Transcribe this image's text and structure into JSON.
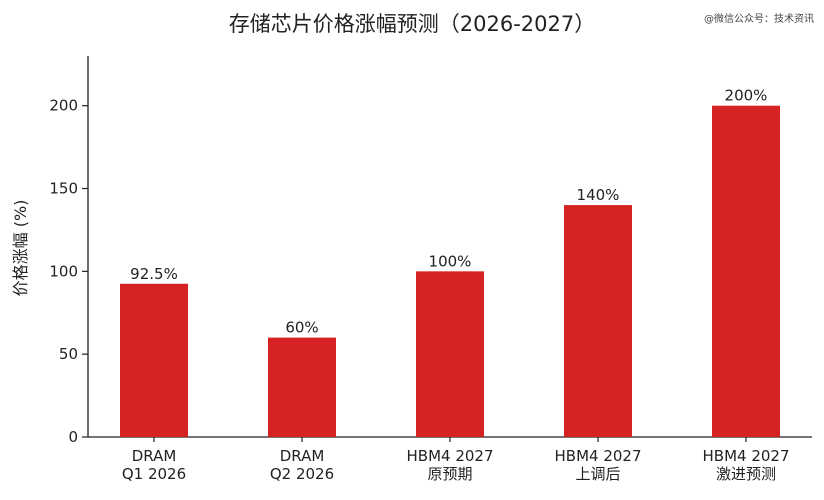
{
  "chart_data": {
    "type": "bar",
    "title": "存储芯片价格涨幅预测（2026-2027）",
    "ylabel": "价格涨幅 (%)",
    "xlabel": "",
    "ylim": [
      0,
      230
    ],
    "yticks": [
      0,
      50,
      100,
      150,
      200
    ],
    "categories": [
      [
        "DRAM",
        "Q1 2026"
      ],
      [
        "DRAM",
        "Q2 2026"
      ],
      [
        "HBM4 2027",
        "原预期"
      ],
      [
        "HBM4 2027",
        "上调后"
      ],
      [
        "HBM4 2027",
        "激进预测"
      ]
    ],
    "values": [
      92.5,
      60,
      100,
      140,
      200
    ],
    "data_labels": [
      "92.5%",
      "60%",
      "100%",
      "140%",
      "200%"
    ],
    "bar_color": "#d62222",
    "grid": false
  },
  "watermark": "@微信公众号：技术资讯"
}
